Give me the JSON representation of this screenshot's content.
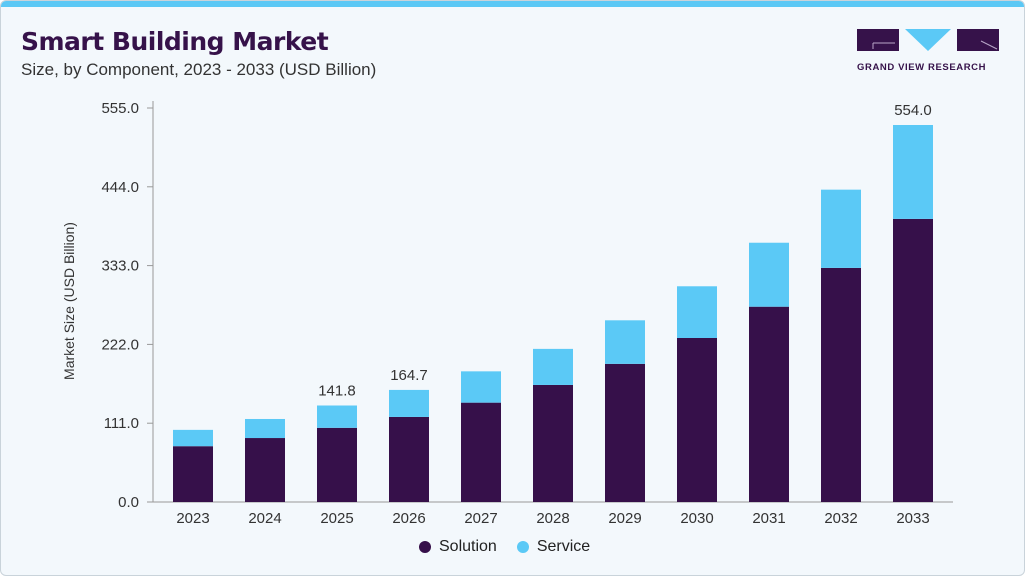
{
  "header": {
    "title": "Smart Building Market",
    "subtitle": "Size, by Component, 2023 - 2033 (USD Billion)"
  },
  "logo": {
    "text": "GRAND VIEW RESEARCH"
  },
  "chart_data": {
    "type": "bar",
    "stacked": true,
    "ylabel": "Market Size (USD Billion)",
    "xlabel": "",
    "yticks": [
      "0.0",
      "111.0",
      "222.0",
      "333.0",
      "444.0",
      "555.0"
    ],
    "ylim": [
      0,
      555
    ],
    "categories": [
      "2023",
      "2024",
      "2025",
      "2026",
      "2027",
      "2028",
      "2029",
      "2030",
      "2031",
      "2032",
      "2033"
    ],
    "series": [
      {
        "name": "Solution",
        "color": "#36104a",
        "values": [
          82,
          94,
          109,
          125,
          146,
          172,
          203,
          241,
          287,
          344,
          416
        ]
      },
      {
        "name": "Service",
        "color": "#5bc9f6",
        "values": [
          24,
          28,
          32.8,
          39.7,
          46,
          53,
          64,
          76,
          94,
          115,
          138
        ]
      }
    ],
    "totals": [
      106,
      122,
      141.8,
      164.7,
      192,
      225,
      267,
      317,
      381,
      459,
      554.0
    ],
    "data_labels": {
      "2025": "141.8",
      "2026": "164.7",
      "2033": "554.0"
    },
    "legend_position": "bottom",
    "grid": false
  }
}
